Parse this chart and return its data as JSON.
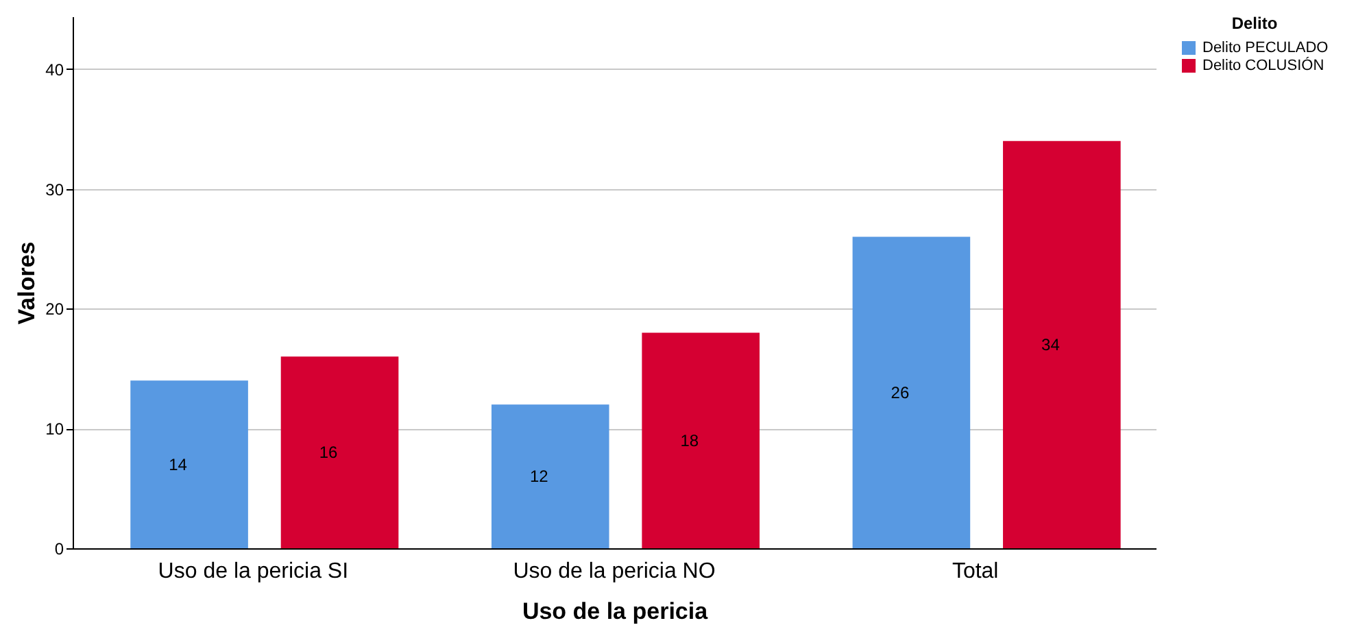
{
  "chart_data": {
    "type": "bar",
    "xlabel": "Uso de la pericia",
    "ylabel": "Valores",
    "legend_title": "Delito",
    "categories": [
      "Uso de la pericia SI",
      "Uso de la pericia NO",
      "Total"
    ],
    "series": [
      {
        "name": "Delito PECULADO",
        "color": "#5899e2",
        "values": [
          14,
          12,
          26
        ]
      },
      {
        "name": "Delito COLUSIÓN",
        "color": "#d50032",
        "values": [
          16,
          18,
          34
        ]
      }
    ],
    "ylim": [
      0,
      44.4
    ],
    "yticks": [
      0,
      10,
      20,
      30,
      40
    ],
    "grid": "y",
    "legend": "top right",
    "data_labels": true
  }
}
